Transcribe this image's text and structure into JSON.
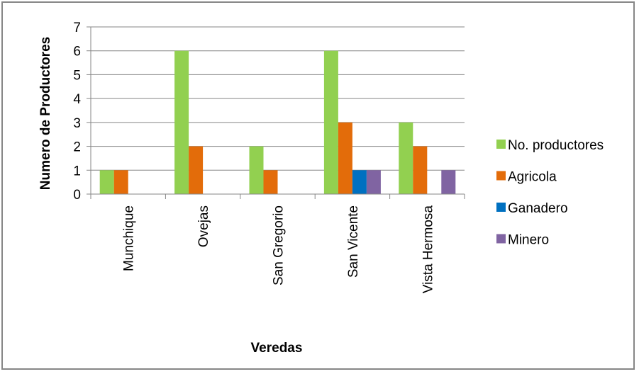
{
  "chart_data": {
    "type": "bar",
    "title": "",
    "xlabel": "Veredas",
    "ylabel": "Numero de Productores",
    "categories": [
      "Munchique",
      "Ovejas",
      "San Gregorio",
      "San Vicente",
      "Vista Hermosa"
    ],
    "series": [
      {
        "name": "No. productores",
        "color": "#92D050",
        "values": [
          1,
          6,
          2,
          6,
          3
        ]
      },
      {
        "name": "Agricola",
        "color": "#E36C0A",
        "values": [
          1,
          2,
          1,
          3,
          2
        ]
      },
      {
        "name": "Ganadero",
        "color": "#0070C0",
        "values": [
          0,
          0,
          0,
          1,
          0
        ]
      },
      {
        "name": "Minero",
        "color": "#8064A2",
        "values": [
          0,
          0,
          0,
          1,
          1
        ]
      }
    ],
    "ylim": [
      0,
      7
    ],
    "yticks": [
      0,
      1,
      2,
      3,
      4,
      5,
      6,
      7
    ],
    "grid": true,
    "legend_position": "right"
  }
}
